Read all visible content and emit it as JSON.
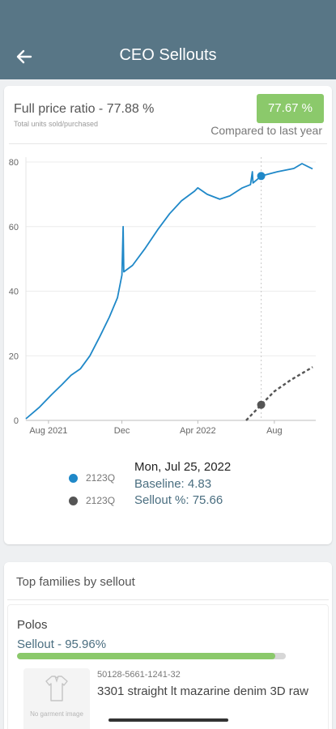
{
  "header": {
    "title": "CEO Sellouts",
    "back_icon": "back-arrow-icon"
  },
  "summary": {
    "title": "Full price ratio - 77.88 %",
    "subtitle": "Total units sold/purchased",
    "badge": "77.67 %",
    "badge_color": "#8bc96b",
    "compared": "Compared to last year"
  },
  "chart_data": {
    "type": "line",
    "x_ticks": [
      "Aug 2021",
      "Dec",
      "Apr 2022",
      "Aug"
    ],
    "y_ticks": [
      "0",
      "20",
      "40",
      "60",
      "80"
    ],
    "ylim": [
      0,
      80
    ],
    "xlim": [
      "2021-07-15",
      "2022-10-20"
    ],
    "grid": "horizontal",
    "series": [
      {
        "name": "2123Q",
        "color": "#1f88c8",
        "style": "solid",
        "points": [
          [
            "2021-07-15",
            0.5
          ],
          [
            "2021-08-05",
            4
          ],
          [
            "2021-08-25",
            8
          ],
          [
            "2021-09-10",
            11
          ],
          [
            "2021-09-25",
            14
          ],
          [
            "2021-10-10",
            16
          ],
          [
            "2021-10-25",
            20
          ],
          [
            "2021-11-10",
            26
          ],
          [
            "2021-11-25",
            32
          ],
          [
            "2021-12-08",
            38
          ],
          [
            "2021-12-15",
            45
          ],
          [
            "2021-12-17",
            60
          ],
          [
            "2021-12-18",
            46
          ],
          [
            "2022-01-01",
            48
          ],
          [
            "2022-01-20",
            53
          ],
          [
            "2022-02-10",
            59
          ],
          [
            "2022-03-01",
            64
          ],
          [
            "2022-03-20",
            68
          ],
          [
            "2022-04-10",
            71
          ],
          [
            "2022-04-15",
            72
          ],
          [
            "2022-04-30",
            70
          ],
          [
            "2022-05-20",
            68.5
          ],
          [
            "2022-06-05",
            69.5
          ],
          [
            "2022-06-25",
            72
          ],
          [
            "2022-07-08",
            73
          ],
          [
            "2022-07-11",
            77
          ],
          [
            "2022-07-12",
            73.5
          ],
          [
            "2022-07-25",
            75.66
          ],
          [
            "2022-08-20",
            77
          ],
          [
            "2022-09-15",
            78
          ],
          [
            "2022-09-28",
            79.5
          ],
          [
            "2022-10-15",
            77.88
          ]
        ]
      },
      {
        "name": "2123Q",
        "color": "#555555",
        "style": "dashed",
        "points": [
          [
            "2022-07-01",
            0
          ],
          [
            "2022-07-25",
            4.83
          ],
          [
            "2022-08-15",
            9
          ],
          [
            "2022-09-10",
            12.5
          ],
          [
            "2022-10-15",
            16.5
          ]
        ]
      }
    ],
    "highlight": {
      "x": "2022-07-25",
      "blue_value": 75.66,
      "gray_value": 4.83
    }
  },
  "legend": {
    "items": [
      {
        "label": "2123Q",
        "color": "#1f88c8"
      },
      {
        "label": "2123Q",
        "color": "#555555"
      }
    ]
  },
  "tooltip": {
    "date": "Mon, Jul 25, 2022",
    "baseline": "Baseline: 4.83",
    "sellout": "Sellout %: 75.66"
  },
  "families": {
    "title": "Top families by sellout",
    "name": "Polos",
    "sellout_label": "Sellout - 95.96%",
    "sellout_progress": 95.96,
    "no_image": "No garment image",
    "garment_code": "50128-5661-1241-32",
    "garment_name": "3301 straight lt mazarine denim 3D raw"
  }
}
